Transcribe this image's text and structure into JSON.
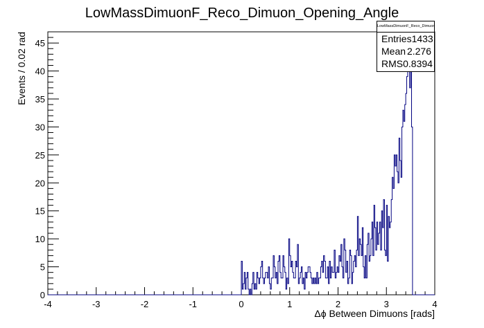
{
  "chart_data": {
    "type": "bar",
    "title": "LowMassDimuonF_Reco_Dimuon_Opening_Angle",
    "xlabel": "Δϕ Between Dimuons [rads]",
    "ylabel": "Events / 0.02 rad",
    "xlim": [
      -4,
      4
    ],
    "ylim": [
      0,
      47
    ],
    "x_ticks": [
      "-4",
      "-3",
      "-2",
      "-1",
      "0",
      "1",
      "2",
      "3",
      "4"
    ],
    "y_ticks": [
      "0",
      "5",
      "10",
      "15",
      "20",
      "25",
      "30",
      "35",
      "40",
      "45"
    ],
    "bin_width": 0.02,
    "bin_start": 0.0,
    "values": [
      6,
      1,
      2,
      4,
      1,
      3,
      4,
      1,
      0,
      1,
      0,
      2,
      4,
      1,
      2,
      1,
      4,
      3,
      2,
      3,
      5,
      6,
      3,
      2,
      3,
      4,
      4,
      3,
      5,
      2,
      1,
      3,
      3,
      7,
      5,
      3,
      4,
      2,
      6,
      7,
      4,
      3,
      3,
      7,
      5,
      4,
      1,
      3,
      2,
      10,
      7,
      5,
      6,
      4,
      3,
      3,
      6,
      5,
      9,
      2,
      3,
      4,
      5,
      2,
      3,
      1,
      4,
      3,
      4,
      5,
      5,
      4,
      3,
      2,
      3,
      2,
      3,
      2,
      4,
      2,
      3,
      3,
      5,
      6,
      4,
      7,
      6,
      3,
      3,
      5,
      2,
      6,
      3,
      5,
      4,
      4,
      8,
      3,
      4,
      5,
      4,
      7,
      6,
      9,
      5,
      3,
      10,
      8,
      4,
      6,
      2,
      3,
      8,
      7,
      2,
      4,
      6,
      7,
      5,
      8,
      14,
      7,
      10,
      9,
      7,
      12,
      5,
      3,
      7,
      3,
      9,
      11,
      6,
      7,
      10,
      13,
      7,
      16,
      12,
      8,
      13,
      9,
      11,
      13,
      8,
      15,
      12,
      17,
      8,
      7,
      16,
      6,
      14,
      12,
      13,
      17,
      21,
      19,
      25,
      23,
      25,
      22,
      20,
      28,
      24,
      21,
      30,
      33,
      31,
      34,
      36,
      39,
      40,
      44,
      37,
      40,
      30,
      0
    ],
    "stats": {
      "name": "LowMassDimuonF_Reco_Dimuon_Opening_Angle",
      "entries_label": "Entries",
      "entries": "1433",
      "mean_label": "Mean",
      "mean": "2.276",
      "rms_label": "RMS",
      "rms": "0.8394"
    },
    "colors": {
      "line": "#000080",
      "frame": "#000000",
      "background": "#ffffff"
    }
  }
}
